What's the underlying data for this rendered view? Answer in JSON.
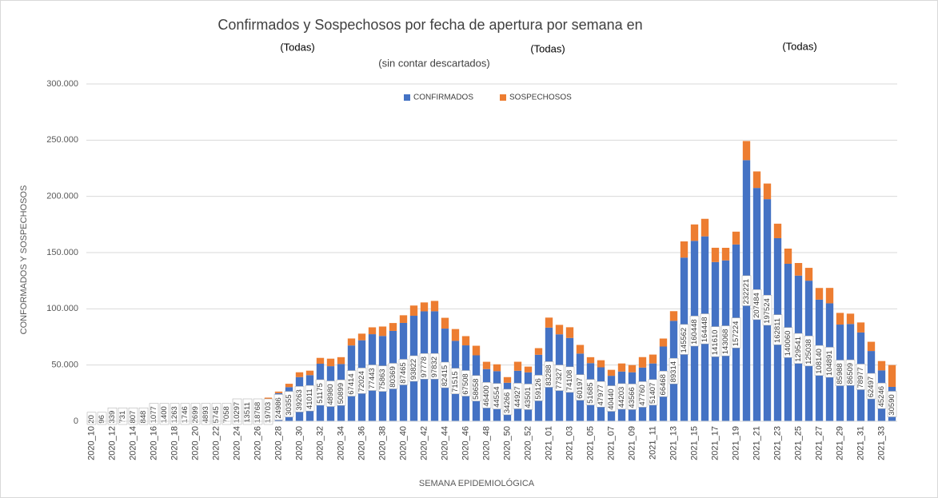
{
  "chart_data": {
    "type": "stacked_bar",
    "title": "Confirmados y Sospechosos por fecha de apertura por semana en",
    "subtitle": "(sin contar descartados)",
    "annotations": [
      "(Todas)",
      "(Todas)",
      "(Todas)"
    ],
    "x_label": "SEMANA EPIDEMIOLÓGICA",
    "y_label": "CONFORMADOS Y SOSPECHOSOS",
    "categories": [
      "2020_10",
      null,
      "2020_12",
      null,
      "2020_14",
      null,
      "2020_16",
      null,
      "2020_18",
      null,
      "2020_20",
      null,
      "2020_22",
      null,
      "2020_24",
      null,
      "2020_26",
      null,
      "2020_28",
      null,
      "2020_30",
      null,
      "2020_32",
      null,
      "2020_34",
      null,
      "2020_36",
      null,
      "2020_38",
      null,
      "2020_40",
      null,
      "2020_42",
      null,
      "2020_44",
      null,
      "2020_46",
      null,
      "2020_48",
      null,
      "2020_50",
      null,
      "2020_52",
      null,
      "2021_01",
      null,
      "2021_03",
      null,
      "2021_05",
      null,
      "2021_07",
      null,
      "2021_09",
      null,
      "2021_11",
      null,
      "2021_13",
      null,
      "2021_15",
      null,
      "2021_17",
      null,
      "2021_19",
      null,
      "2021_21",
      null,
      "2021_23",
      null,
      "2021_25",
      null,
      "2021_27",
      null,
      "2021_29",
      null,
      "2021_31",
      null,
      "2021_33",
      null
    ],
    "series": [
      {
        "name": "CONFIRMADOS",
        "color": "#4472c4",
        "values": [
          20,
          96,
          339,
          731,
          807,
          848,
          1077,
          1400,
          1263,
          1746,
          2699,
          4893,
          5745,
          7058,
          10297,
          13511,
          18768,
          19703,
          24986,
          30355,
          39263,
          41011,
          51175,
          48980,
          50899,
          67414,
          72024,
          77443,
          75863,
          80369,
          87465,
          93822,
          97778,
          97832,
          82415,
          71515,
          67508,
          58658,
          46400,
          44554,
          34266,
          44927,
          43501,
          59126,
          83288,
          77327,
          74108,
          60197,
          51685,
          47977,
          40440,
          44203,
          43566,
          47760,
          51407,
          66468,
          89314,
          145562,
          160448,
          164448,
          141610,
          143068,
          157224,
          232221,
          207484,
          197524,
          162811,
          140060,
          129541,
          125038,
          108140,
          104891,
          85988,
          86509,
          78977,
          62497,
          45246,
          30590
        ]
      },
      {
        "name": "SOSPECHOSOS",
        "color": "#ed7d31",
        "values": [
          0,
          0,
          10,
          20,
          30,
          40,
          60,
          80,
          100,
          120,
          150,
          200,
          250,
          300,
          400,
          600,
          900,
          1300,
          1400,
          3000,
          4300,
          4000,
          5200,
          6700,
          6100,
          6200,
          5900,
          6100,
          8400,
          7000,
          6800,
          9100,
          7900,
          9200,
          9600,
          10500,
          8200,
          8500,
          6500,
          6100,
          5000,
          8000,
          5100,
          5900,
          8900,
          8400,
          9500,
          7700,
          5300,
          6300,
          5300,
          7200,
          6400,
          9300,
          7900,
          7100,
          8600,
          14400,
          14600,
          15600,
          12700,
          11200,
          11400,
          17000,
          14700,
          13900,
          12900,
          13500,
          11200,
          11400,
          10400,
          13700,
          10400,
          9200,
          8900,
          8200,
          8300,
          19400
        ]
      }
    ],
    "ylim": [
      0,
      300000
    ],
    "yticks": [
      0,
      {
        "value": 50000,
        "label": "50.000"
      },
      {
        "value": 100000,
        "label": "100.000"
      },
      {
        "value": 150000,
        "label": "150.000"
      },
      {
        "value": 200000,
        "label": "200.000"
      },
      {
        "value": 250000,
        "label": "250.000"
      },
      {
        "value": 300000,
        "label": "300.000"
      }
    ],
    "grid": true,
    "legend": "top"
  }
}
